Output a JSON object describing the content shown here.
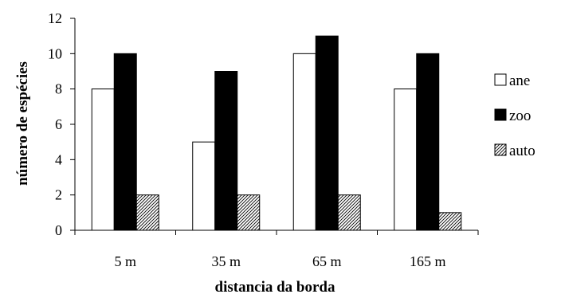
{
  "chart_data": {
    "type": "bar",
    "categories": [
      "5 m",
      "35 m",
      "65 m",
      "165 m"
    ],
    "series": [
      {
        "name": "ane",
        "values": [
          8,
          5,
          10,
          8
        ],
        "fill": "#ffffff"
      },
      {
        "name": "zoo",
        "values": [
          10,
          9,
          11,
          10
        ],
        "fill": "#000000"
      },
      {
        "name": "auto",
        "values": [
          2,
          2,
          2,
          1
        ],
        "fill": "hatch"
      }
    ],
    "xlabel": "distancia da borda",
    "ylabel": "número de espécies",
    "ylim": [
      0,
      12
    ],
    "yticks": [
      0,
      2,
      4,
      6,
      8,
      10,
      12
    ],
    "grid": false,
    "legend": "right"
  }
}
